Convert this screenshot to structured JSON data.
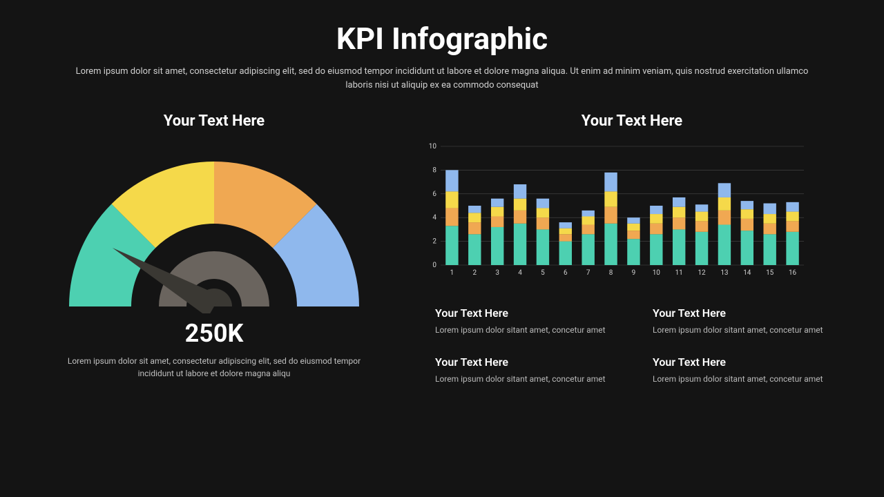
{
  "header": {
    "title": "KPI Infographic",
    "subtitle": "Lorem ipsum dolor sit amet, consectetur adipiscing elit, sed do eiusmod tempor incididunt ut labore et dolore magna aliqua. Ut enim ad minim veniam, quis nostrud exercitation ullamco laboris nisi ut aliquip ex ea commodo consequat"
  },
  "gauge": {
    "title": "Your Text Here",
    "value_label": "250K",
    "description": "Lorem ipsum dolor sit amet, consectetur adipiscing elit, sed do eiusmod tempor incididunt ut labore et dolore magna aliqu",
    "segments": [
      {
        "start_deg": 180,
        "end_deg": 225,
        "color": "#4dd0b1"
      },
      {
        "start_deg": 225,
        "end_deg": 270,
        "color": "#f5d94a"
      },
      {
        "start_deg": 270,
        "end_deg": 315,
        "color": "#f0a852"
      },
      {
        "start_deg": 315,
        "end_deg": 360,
        "color": "#8fb8ed"
      }
    ],
    "outer_radius": 210,
    "inner_radius": 120,
    "hub_outer_radius": 80,
    "hub_outer_color": "#6a645e",
    "hub_inner_radius": 40,
    "hub_inner_color": "#141414",
    "hub_core_radius": 26,
    "hub_core_color": "#3a3833",
    "needle_angle_deg": 210,
    "needle_length": 170,
    "needle_color": "#3a3833",
    "background": "#141414"
  },
  "barchart": {
    "title": "Your Text Here",
    "y_max": 10,
    "y_ticks": [
      0,
      2,
      4,
      6,
      8,
      10
    ],
    "x_labels": [
      "1",
      "2",
      "3",
      "4",
      "5",
      "6",
      "7",
      "8",
      "9",
      "10",
      "11",
      "12",
      "13",
      "14",
      "15",
      "16"
    ],
    "series_colors": {
      "bottom": "#4dd0b1",
      "mid": "#f0a852",
      "mid2": "#f5d94a",
      "top": "#8fb8ed"
    },
    "grid_color": "#4a4a4a",
    "axis_label_color": "#d0d0d0",
    "axis_fontsize": 10,
    "bar_width_ratio": 0.56,
    "data": [
      {
        "bottom": 3.3,
        "mid": 1.5,
        "mid2": 1.4,
        "top": 1.8
      },
      {
        "bottom": 2.6,
        "mid": 1.0,
        "mid2": 0.8,
        "top": 0.6
      },
      {
        "bottom": 3.2,
        "mid": 0.9,
        "mid2": 0.8,
        "top": 0.7
      },
      {
        "bottom": 3.5,
        "mid": 1.1,
        "mid2": 1.0,
        "top": 1.2
      },
      {
        "bottom": 3.0,
        "mid": 1.0,
        "mid2": 0.8,
        "top": 0.8
      },
      {
        "bottom": 2.0,
        "mid": 0.6,
        "mid2": 0.5,
        "top": 0.5
      },
      {
        "bottom": 2.6,
        "mid": 0.8,
        "mid2": 0.7,
        "top": 0.5
      },
      {
        "bottom": 3.5,
        "mid": 1.4,
        "mid2": 1.3,
        "top": 1.6
      },
      {
        "bottom": 2.2,
        "mid": 0.7,
        "mid2": 0.6,
        "top": 0.5
      },
      {
        "bottom": 2.6,
        "mid": 0.9,
        "mid2": 0.8,
        "top": 0.7
      },
      {
        "bottom": 3.0,
        "mid": 1.0,
        "mid2": 0.9,
        "top": 0.8
      },
      {
        "bottom": 2.8,
        "mid": 0.9,
        "mid2": 0.8,
        "top": 0.6
      },
      {
        "bottom": 3.4,
        "mid": 1.2,
        "mid2": 1.1,
        "top": 1.2
      },
      {
        "bottom": 2.9,
        "mid": 1.0,
        "mid2": 0.8,
        "top": 0.7
      },
      {
        "bottom": 2.6,
        "mid": 0.9,
        "mid2": 0.8,
        "top": 0.9
      },
      {
        "bottom": 2.8,
        "mid": 0.9,
        "mid2": 0.8,
        "top": 0.8
      }
    ]
  },
  "blocks": [
    {
      "title": "Your Text Here",
      "text": "Lorem ipsum dolor sitant amet, concetur amet"
    },
    {
      "title": "Your Text Here",
      "text": "Lorem ipsum dolor sitant amet, concetur amet"
    },
    {
      "title": "Your Text Here",
      "text": "Lorem ipsum dolor sitant amet, concetur amet"
    },
    {
      "title": "Your Text Here",
      "text": "Lorem ipsum dolor sitant amet, concetur amet"
    }
  ]
}
